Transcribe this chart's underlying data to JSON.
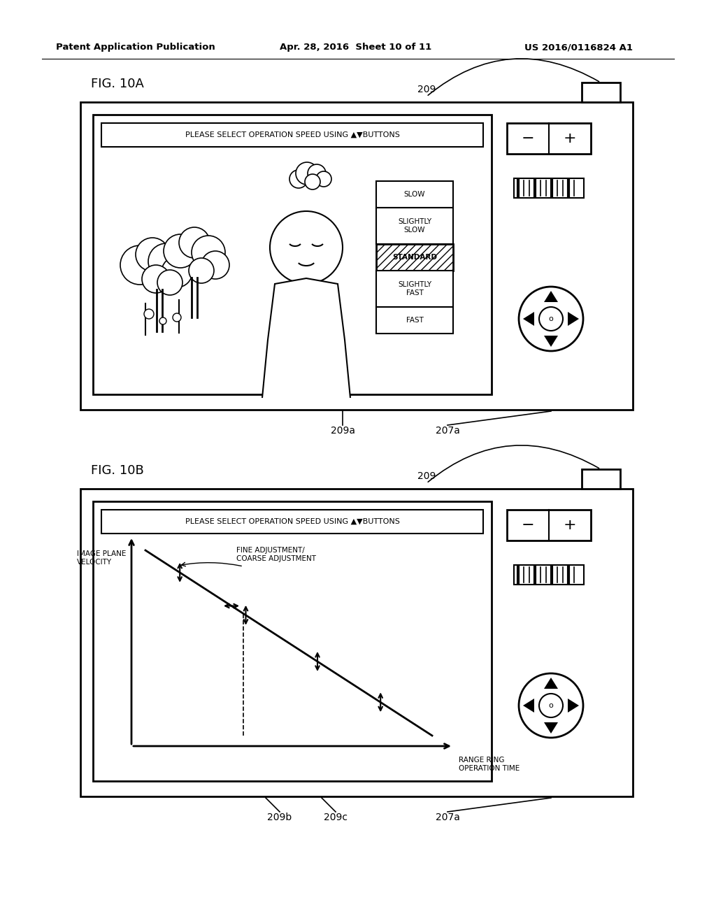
{
  "bg_color": "#ffffff",
  "header_left": "Patent Application Publication",
  "header_mid": "Apr. 28, 2016  Sheet 10 of 11",
  "header_right": "US 2016/0116824 A1",
  "fig10a_label": "FIG. 10A",
  "fig10b_label": "FIG. 10B",
  "prompt_text": "PLEASE SELECT OPERATION SPEED USING ▲▼BUTTONS",
  "speed_items": [
    "SLOW",
    "SLIGHTLY\nSLOW",
    "STANDARD",
    "SLIGHTLY\nFAST",
    "FAST"
  ],
  "graph_ylabel": "IMAGE PLANE\nVELOCITY",
  "graph_xlabel": "RANGE RING\nOPERATION TIME",
  "graph_annotation": "FINE ADJUSTMENT/\nCOARSE ADJUSTMENT"
}
